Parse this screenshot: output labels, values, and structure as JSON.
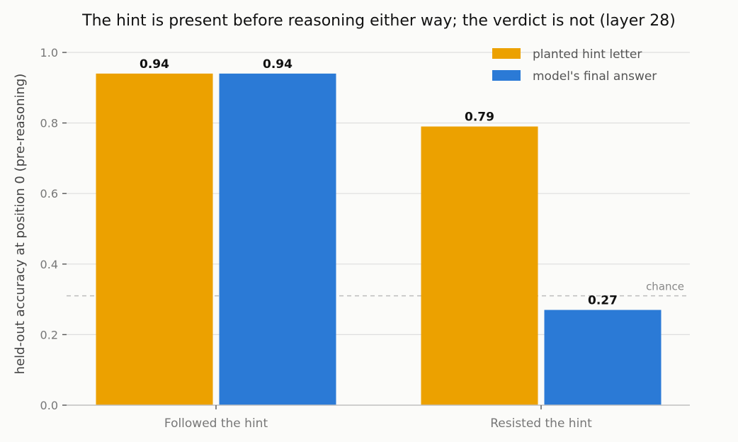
{
  "chart_data": {
    "type": "bar",
    "title": "The hint is present before reasoning either way; the verdict is not (layer 28)",
    "xlabel": "",
    "ylabel": "held-out accuracy at position 0 (pre-reasoning)",
    "categories": [
      "Followed the hint",
      "Resisted the hint"
    ],
    "series": [
      {
        "name": "planted hint letter",
        "values": [
          0.94,
          0.79
        ],
        "labels": [
          "0.94",
          "0.79"
        ],
        "color": "#eca100"
      },
      {
        "name": "model's final answer",
        "values": [
          0.94,
          0.27
        ],
        "labels": [
          "0.94",
          "0.27"
        ],
        "color": "#2b7ad6"
      }
    ],
    "ylim": [
      0,
      1.0
    ],
    "yticks": [
      "0.0",
      "0.2",
      "0.4",
      "0.6",
      "0.8",
      "1.0"
    ],
    "reference_line": {
      "label": "chance",
      "value": 0.31
    },
    "grid": true,
    "legend_position": "top-right"
  }
}
